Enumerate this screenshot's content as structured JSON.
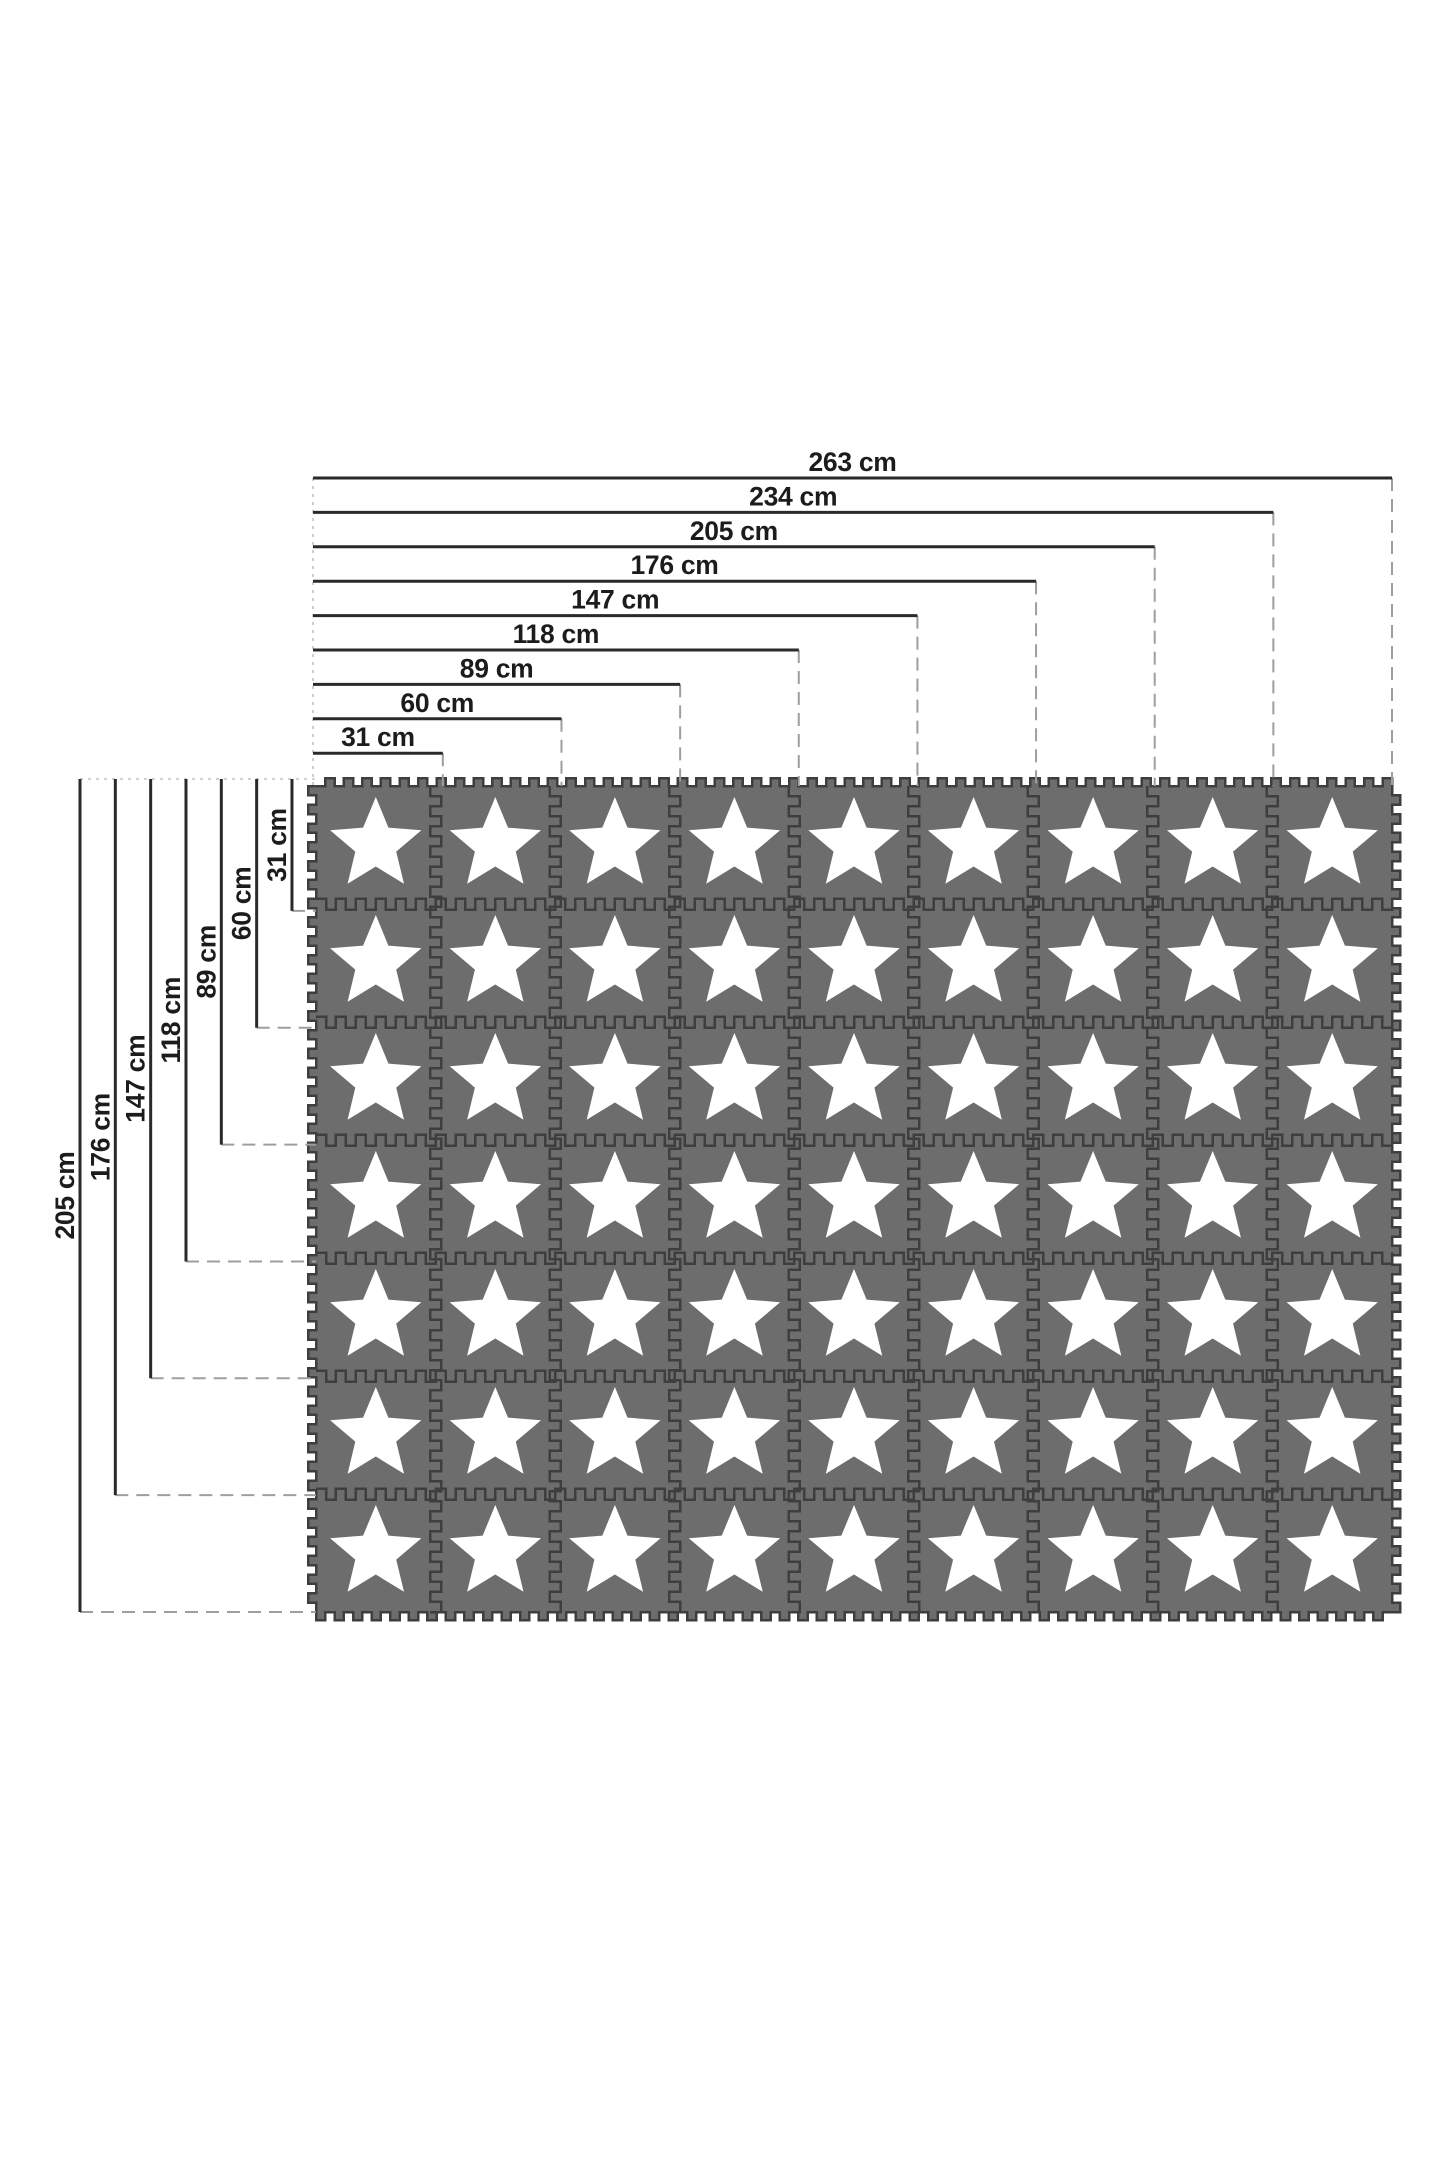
{
  "diagram": {
    "unit": "cm",
    "horizontal_dimensions": [
      {
        "label": "263 cm",
        "cm": 263
      },
      {
        "label": "234 cm",
        "cm": 234
      },
      {
        "label": "205 cm",
        "cm": 205
      },
      {
        "label": "176 cm",
        "cm": 176
      },
      {
        "label": "147 cm",
        "cm": 147
      },
      {
        "label": "118 cm",
        "cm": 118
      },
      {
        "label": "89 cm",
        "cm": 89
      },
      {
        "label": "60 cm",
        "cm": 60
      },
      {
        "label": "31 cm",
        "cm": 31
      }
    ],
    "vertical_dimensions": [
      {
        "label": "205 cm",
        "cm": 205
      },
      {
        "label": "176 cm",
        "cm": 176
      },
      {
        "label": "147 cm",
        "cm": 147
      },
      {
        "label": "118 cm",
        "cm": 118
      },
      {
        "label": "89 cm",
        "cm": 89
      },
      {
        "label": "60 cm",
        "cm": 60
      },
      {
        "label": "31 cm",
        "cm": 31
      }
    ],
    "mat": {
      "columns": 9,
      "rows": 7,
      "tile_count": 63,
      "tile_motif": "star"
    },
    "colors": {
      "background": "#ffffff",
      "tile": "#6d6d6d",
      "seam": "#3e3e3e",
      "star": "#ffffff",
      "dimension_line": "#2a2a2a",
      "dash_guide": "#9e9e9e",
      "fine_dash_guide": "#c2c2c2",
      "label_text": "#1c1c1c"
    }
  }
}
